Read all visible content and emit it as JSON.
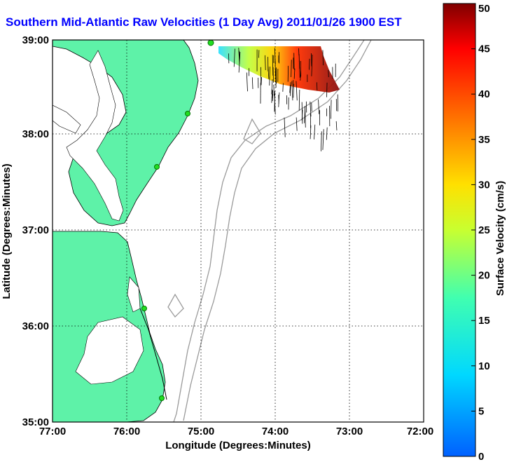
{
  "title": "Southern Mid-Atlantic Raw Velocities (1 Day Avg) 2011/01/26 1900 EST",
  "x_axis": {
    "label": "Longitude (Degrees:Minutes)",
    "ticks": [
      "77:00",
      "76:00",
      "75:00",
      "74:00",
      "73:00",
      "72:00"
    ]
  },
  "y_axis": {
    "label": "Latitude (Degrees:Minutes)",
    "ticks": [
      "39:00",
      "38:00",
      "37:00",
      "36:00",
      "35:00"
    ]
  },
  "colorbar": {
    "label": "Surface Velocity (cm/s)",
    "ticks": [
      "50",
      "45",
      "40",
      "35",
      "30",
      "25",
      "20",
      "15",
      "10",
      "5",
      "0"
    ],
    "min": 0,
    "max": 50
  },
  "colors": {
    "land": "#5ef2a8",
    "water": "#ffffff",
    "coast": "#000000",
    "bathymetry": "#9a9a9a",
    "title": "#0000ff",
    "station": "#22dd22"
  },
  "map_extent": {
    "lon": [
      -77,
      -72
    ],
    "lat": [
      35,
      39
    ]
  },
  "grid": true
}
